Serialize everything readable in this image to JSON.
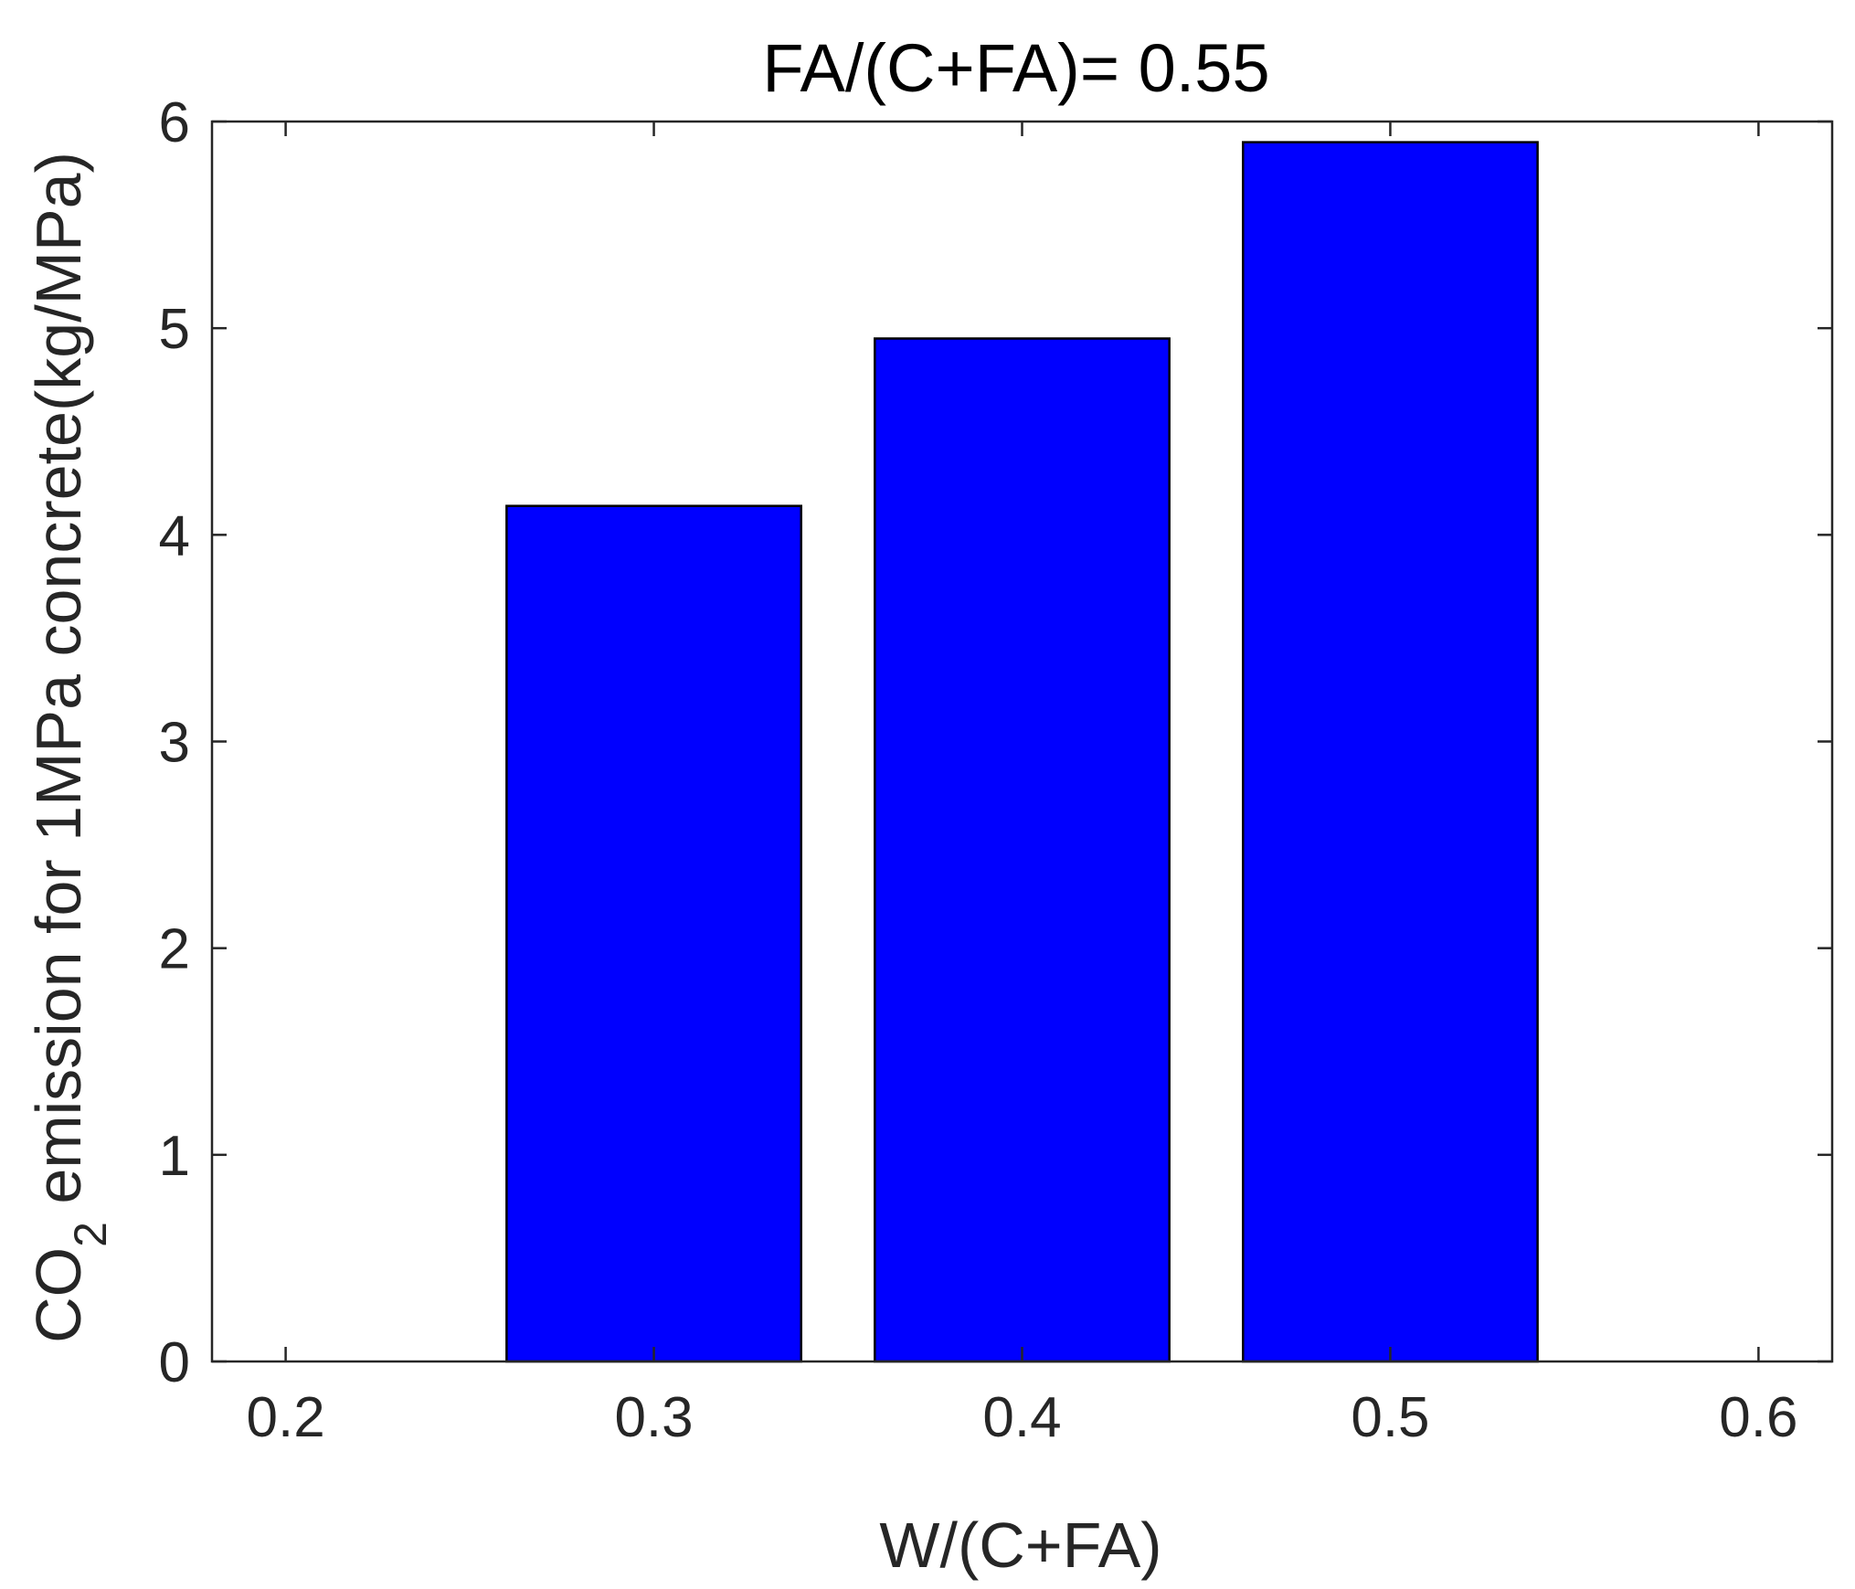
{
  "chart_data": {
    "type": "bar",
    "title": "FA/(C+FA)= 0.55",
    "xlabel": "W/(C+FA)",
    "ylabel": {
      "main": "CO",
      "subscript": "2",
      "rest": " emission for 1MPa concrete(kg/MPa)"
    },
    "x": [
      0.3,
      0.4,
      0.5
    ],
    "values": [
      4.14,
      4.95,
      5.9
    ],
    "bar_width": 0.08,
    "xlim": [
      0.18,
      0.62
    ],
    "ylim": [
      0,
      6
    ],
    "xticks": [
      0.2,
      0.3,
      0.4,
      0.5,
      0.6
    ],
    "xtick_labels": [
      "0.2",
      "0.3",
      "0.4",
      "0.5",
      "0.6"
    ],
    "yticks": [
      0,
      1,
      2,
      3,
      4,
      5,
      6
    ],
    "ytick_labels": [
      "0",
      "1",
      "2",
      "3",
      "4",
      "5",
      "6"
    ],
    "grid": false,
    "bar_color": "#0000FF",
    "edge_color": "#000000",
    "axis_color": "#262626"
  }
}
